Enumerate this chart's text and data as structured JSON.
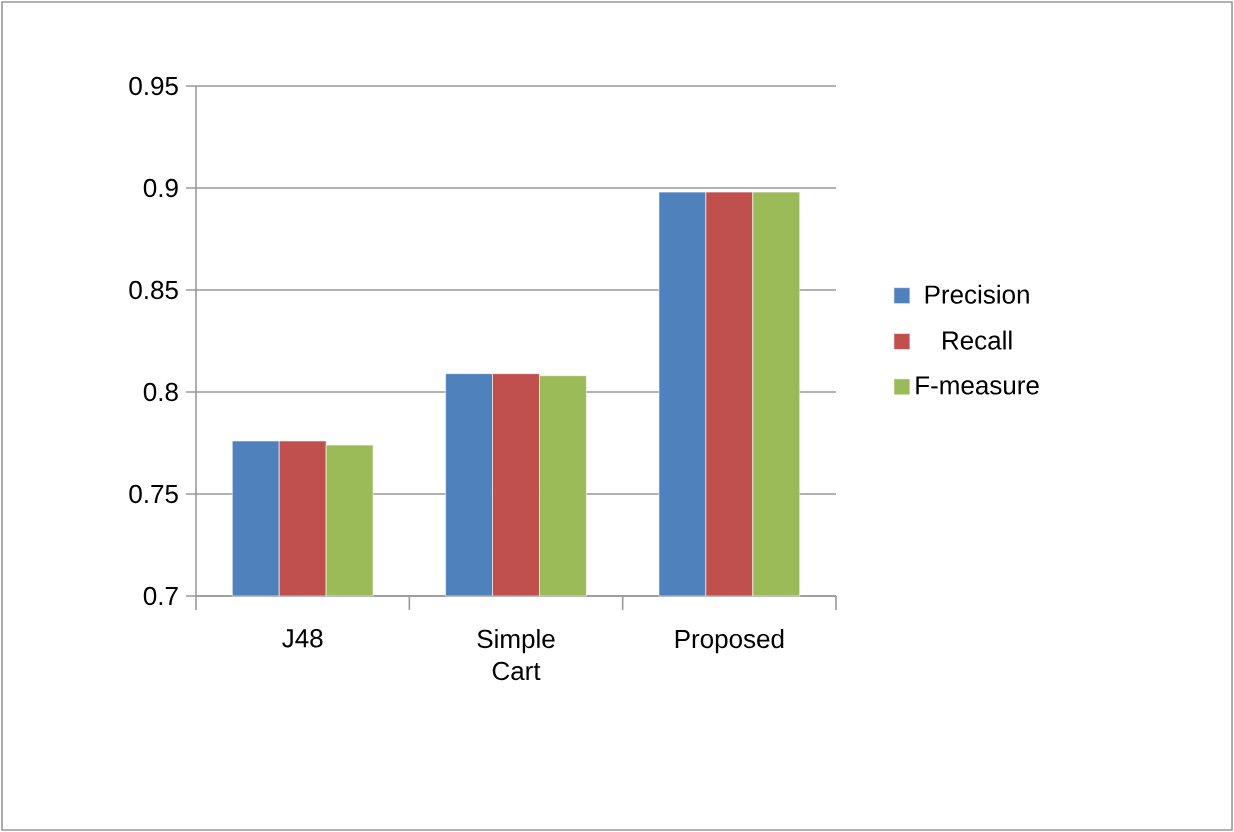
{
  "chart_data": {
    "type": "bar",
    "categories": [
      "J48",
      "Simple Cart",
      "Proposed"
    ],
    "series": [
      {
        "name": "Precision",
        "color": "#4f81bd",
        "values": [
          0.776,
          0.809,
          0.898
        ]
      },
      {
        "name": "Recall",
        "color": "#c0504d",
        "values": [
          0.776,
          0.809,
          0.898
        ]
      },
      {
        "name": "F-measure",
        "color": "#9bbb59",
        "values": [
          0.774,
          0.808,
          0.898
        ]
      }
    ],
    "ylim": [
      0.7,
      0.95
    ],
    "yticks": [
      0.7,
      0.75,
      0.8,
      0.85,
      0.9,
      0.95
    ],
    "grid": "y",
    "legend": "right"
  }
}
